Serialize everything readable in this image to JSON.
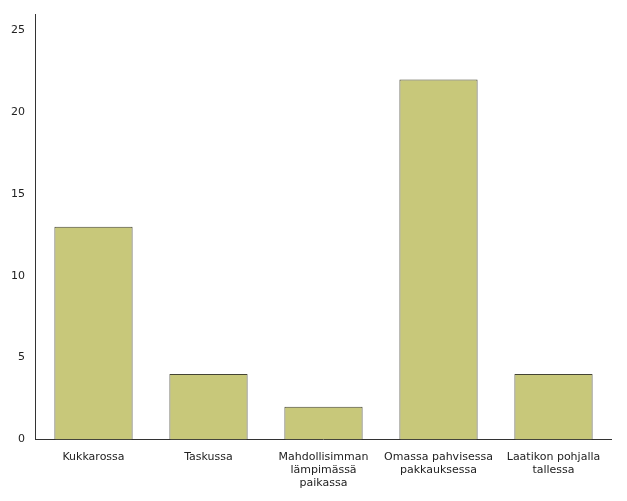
{
  "chart_data": {
    "type": "bar",
    "categories": [
      "Kukkarossa",
      "Taskussa",
      "Mahdollisimman\nlämpimässä\npaikassa",
      "Omassa pahvisessa\npakkauksessa",
      "Laatikon pohjalla\ntallessa"
    ],
    "values": [
      13,
      4,
      2,
      22,
      4
    ],
    "color": "#c8c87a",
    "ylim": [
      0,
      26
    ],
    "yticks": [
      0,
      5,
      10,
      15,
      20,
      25
    ],
    "grid": false
  }
}
